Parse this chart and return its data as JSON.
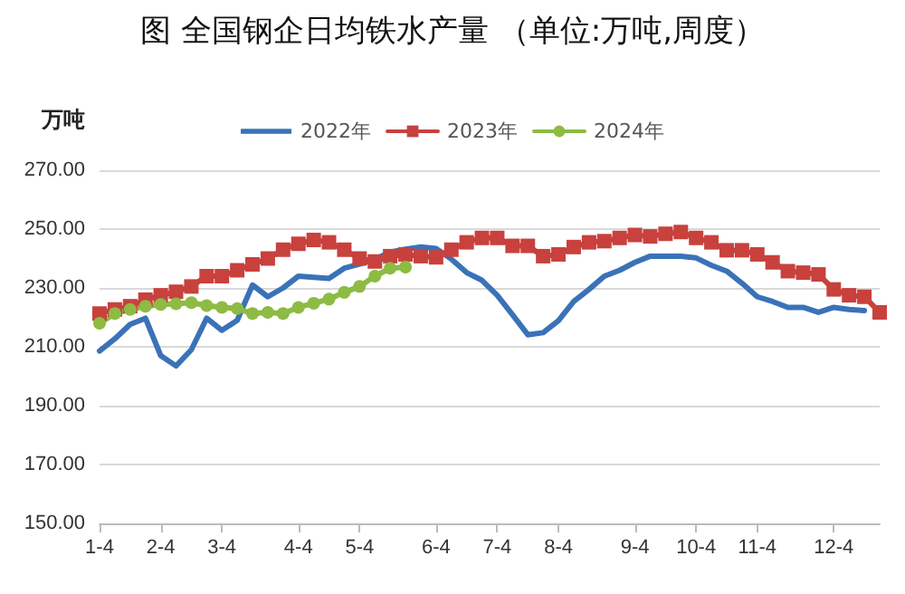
{
  "chart_data": {
    "type": "line",
    "title": "图 全国钢企日均铁水产量 （单位:万吨,周度）",
    "ylabel": "万吨",
    "categories": [
      "1-4",
      null,
      null,
      null,
      "2-4",
      null,
      null,
      null,
      "3-4",
      null,
      null,
      null,
      null,
      "4-4",
      null,
      null,
      null,
      "5-4",
      null,
      null,
      null,
      null,
      "6-4",
      null,
      null,
      null,
      "7-4",
      null,
      null,
      null,
      "8-4",
      null,
      null,
      null,
      null,
      "9-4",
      null,
      null,
      null,
      "10-4",
      null,
      null,
      null,
      "11-4",
      null,
      null,
      null,
      null,
      "12-4",
      null,
      null,
      null
    ],
    "series": [
      {
        "name": "2022年",
        "color": "#3a72b8",
        "marker": "none",
        "values": [
          208.6,
          212.7,
          217.6,
          219.7,
          207,
          203.5,
          209,
          219.7,
          215.6,
          219,
          231,
          227,
          230,
          234,
          233.6,
          233.2,
          236.7,
          238.1,
          239.8,
          242.2,
          243.2,
          243.9,
          243.4,
          239.8,
          235.2,
          232.6,
          227.5,
          220.9,
          214.1,
          214.8,
          218.9,
          225.4,
          229.5,
          234,
          236,
          238.7,
          240.8,
          240.8,
          240.8,
          240.2,
          237.7,
          235.7,
          231.6,
          227,
          225.4,
          223.4,
          223.4,
          221.7,
          223.4,
          222.7,
          222.3,
          null
        ]
      },
      {
        "name": "2023年",
        "color": "#c8413d",
        "marker": "square",
        "values": [
          221.3,
          222.7,
          223.8,
          226,
          227.5,
          228.7,
          230.5,
          234,
          234,
          236,
          238,
          240,
          243,
          245,
          246.3,
          245.5,
          243,
          240,
          239,
          240.8,
          241.4,
          240.8,
          240.4,
          243,
          245.5,
          247,
          247,
          244.3,
          244.3,
          240.8,
          241.4,
          243.9,
          245.5,
          245.9,
          247,
          248,
          247.5,
          248.4,
          249,
          247,
          245.5,
          242.8,
          242.8,
          241.4,
          238.7,
          235.7,
          235.2,
          234.6,
          229.5,
          227.5,
          227,
          221.7
        ]
      },
      {
        "name": "2024年",
        "color": "#8dbb43",
        "marker": "circle",
        "values": [
          218,
          221.3,
          222.7,
          223.8,
          224.4,
          224.6,
          225,
          224,
          223.4,
          223,
          221.3,
          221.7,
          221.3,
          223.4,
          224.8,
          226.2,
          228.5,
          230.5,
          234,
          236.7,
          237.1,
          null,
          null,
          null,
          null,
          null,
          null,
          null,
          null,
          null,
          null,
          null,
          null,
          null,
          null,
          null,
          null,
          null,
          null,
          null,
          null,
          null,
          null,
          null,
          null,
          null,
          null,
          null,
          null,
          null,
          null,
          null
        ]
      }
    ],
    "ylim": [
      150,
      270
    ],
    "yticks": [
      {
        "value": 150,
        "label": "150.00"
      },
      {
        "value": 170,
        "label": "170.00"
      },
      {
        "value": 190,
        "label": "190.00"
      },
      {
        "value": 210,
        "label": "210.00"
      },
      {
        "value": 230,
        "label": "230.00"
      },
      {
        "value": 250,
        "label": "250.00"
      },
      {
        "value": 270,
        "label": "270.00"
      }
    ],
    "grid": "y",
    "legend": "top",
    "line_style": "solid"
  }
}
